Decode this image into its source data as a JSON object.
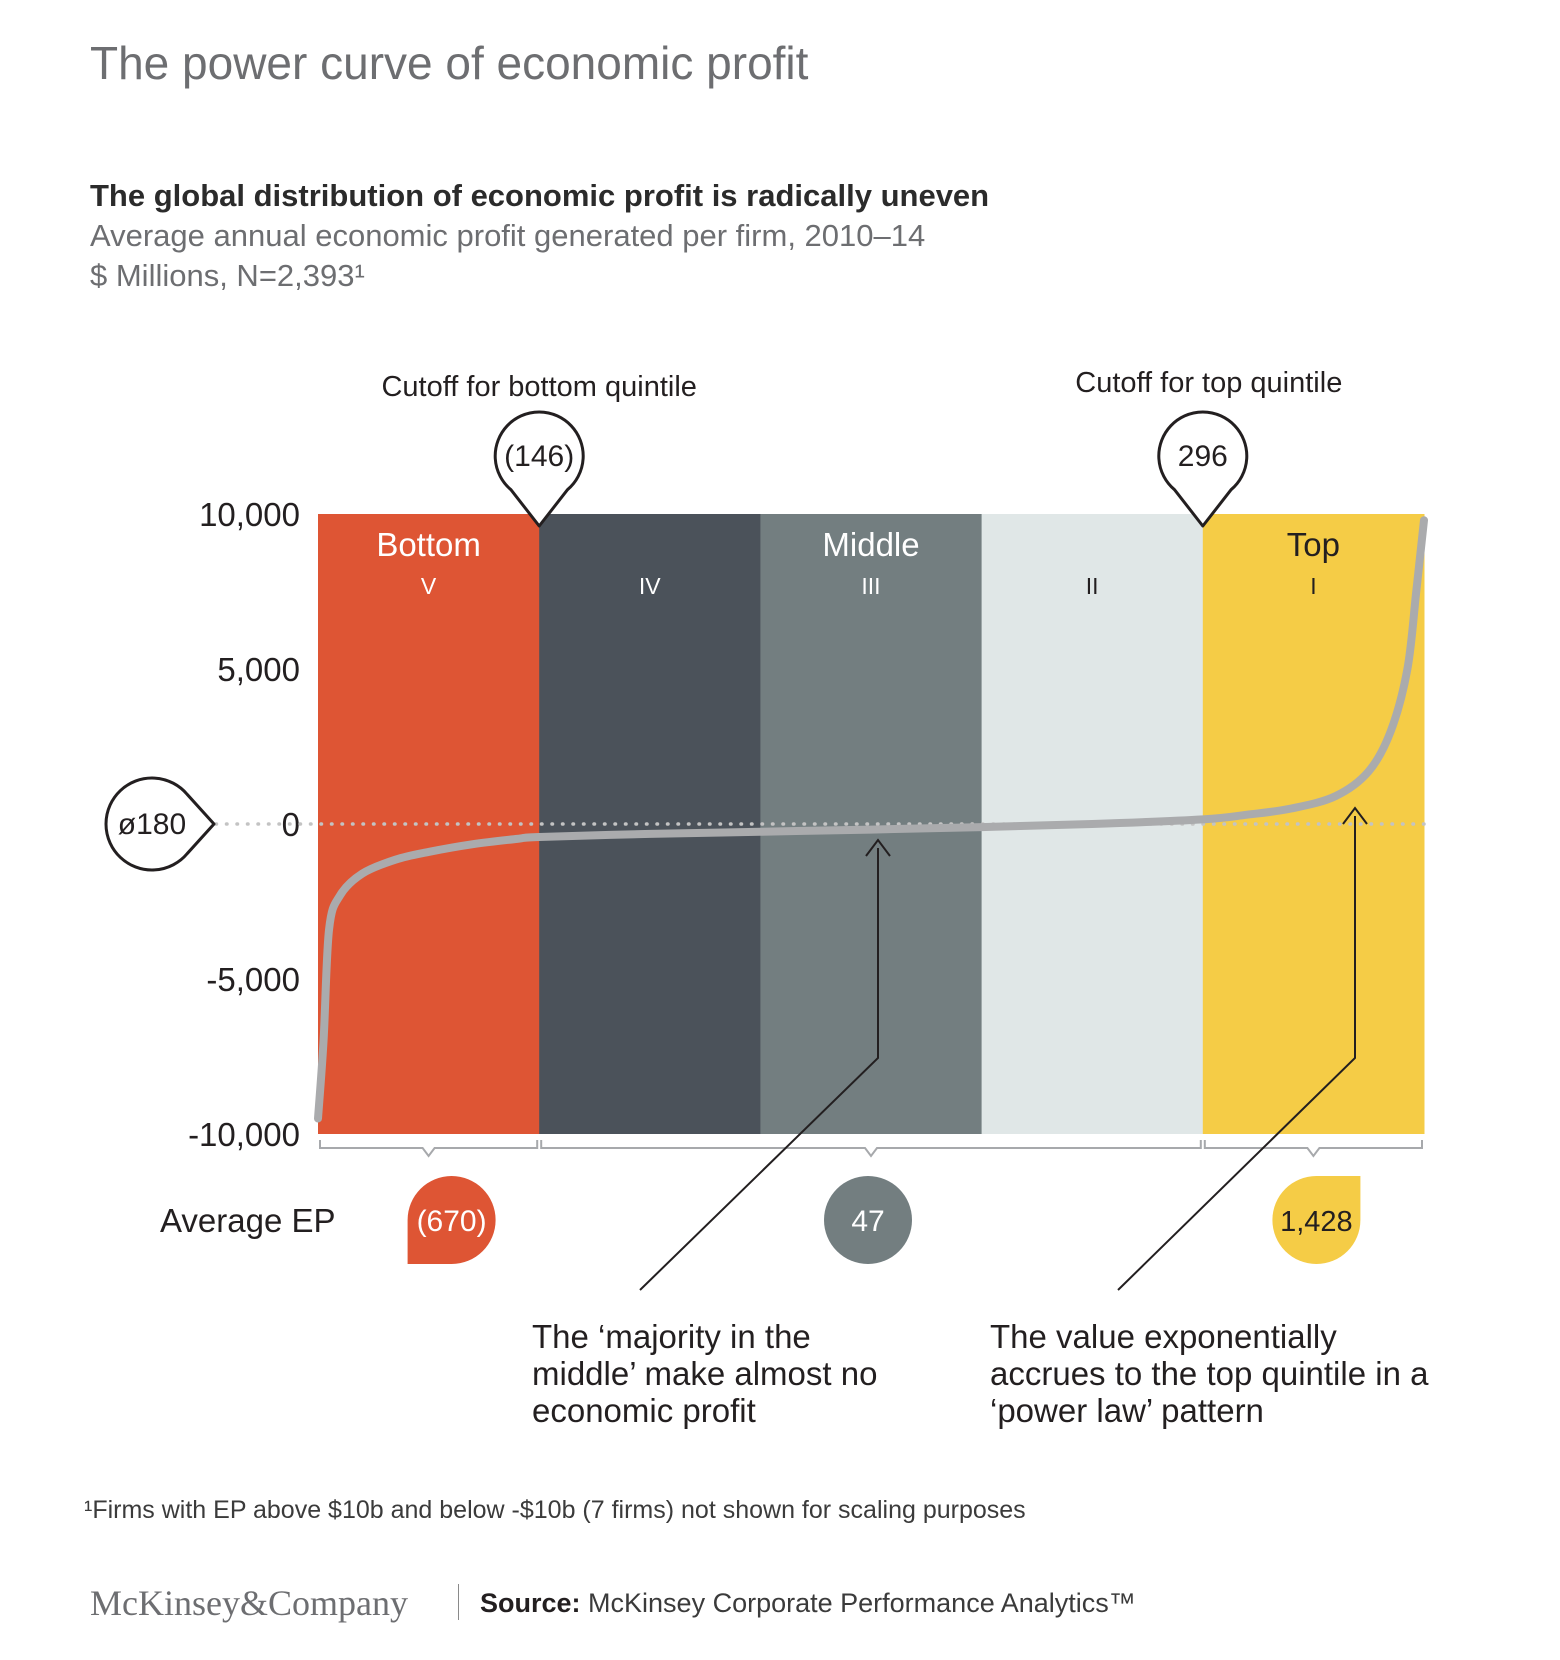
{
  "title": "The power curve of economic profit",
  "subtitle": "The global distribution of economic profit is radically uneven",
  "metric": "Average annual economic profit generated per firm, 2010–14",
  "units": "$ Millions, N=2,393¹",
  "chart_data": {
    "type": "area",
    "ylim": [
      -10000,
      10000
    ],
    "yticks": [
      10000,
      5000,
      0,
      -5000,
      -10000
    ],
    "ytick_labels": [
      "10,000",
      "5,000",
      "0",
      "-5,000",
      "-10,000"
    ],
    "quintiles": [
      {
        "group": "Bottom",
        "numeral": "V",
        "color": "#de5534"
      },
      {
        "group": "",
        "numeral": "IV",
        "color": "#4b525a"
      },
      {
        "group": "Middle",
        "numeral": "III",
        "color": "#737e80"
      },
      {
        "group": "",
        "numeral": "II",
        "color": "#e0e7e7"
      },
      {
        "group": "Top",
        "numeral": "I",
        "color": "#f5cc46"
      }
    ],
    "curve": {
      "x_percentile": [
        0,
        0.5,
        1,
        2,
        4,
        7,
        10,
        14,
        18,
        20,
        30,
        40,
        50,
        60,
        70,
        80,
        84,
        88,
        92,
        95,
        97,
        98.5,
        99.3,
        100
      ],
      "y": [
        -9500,
        -7000,
        -3400,
        -2300,
        -1600,
        -1150,
        -900,
        -650,
        -480,
        -420,
        -320,
        -250,
        -180,
        -100,
        0,
        150,
        300,
        500,
        900,
        1700,
        3000,
        5000,
        7500,
        9800
      ]
    },
    "mean": {
      "label": "ø180",
      "value": 180
    },
    "cutoffs": [
      {
        "label": "Cutoff for bottom quintile",
        "value_label": "(146)",
        "value": -146,
        "percentile": 20
      },
      {
        "label": "Cutoff for top quintile",
        "value_label": "296",
        "value": 296,
        "percentile": 80
      }
    ],
    "average_ep": {
      "label": "Average EP",
      "groups": [
        {
          "name": "Bottom",
          "value": -670,
          "value_label": "(670)",
          "color": "#de5534"
        },
        {
          "name": "Middle",
          "value": 47,
          "value_label": "47",
          "color": "#737e80"
        },
        {
          "name": "Top",
          "value": 1428,
          "value_label": "1,428",
          "color": "#f5cc46"
        }
      ]
    },
    "annotations": [
      "The ‘majority in the middle’ make almost no economic profit",
      "The value exponentially accrues to the top quintile in a ‘power law’ pattern"
    ]
  },
  "footnote": "¹Firms with EP above $10b and below -$10b (7 firms) not shown for scaling purposes",
  "brand": "McKinsey&Company",
  "source_label": "Source:",
  "source_text": "McKinsey Corporate Performance Analytics™"
}
